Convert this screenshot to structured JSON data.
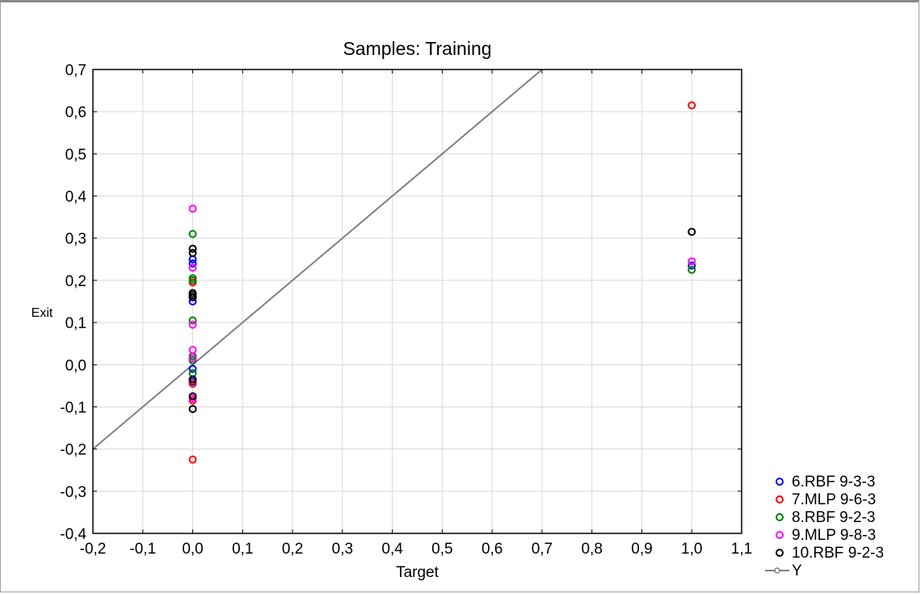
{
  "chart_data": {
    "type": "scatter",
    "title": "Samples: Training",
    "xlabel": "Target",
    "ylabel": "Exit",
    "xlim": [
      -0.2,
      1.1
    ],
    "ylim": [
      -0.4,
      0.7
    ],
    "x_ticks": [
      "-0,2",
      "-0,1",
      "0,0",
      "0,1",
      "0,2",
      "0,3",
      "0,4",
      "0,5",
      "0,6",
      "0,7",
      "0,8",
      "0,9",
      "1,0",
      "1,1"
    ],
    "y_ticks": [
      "-0,4",
      "-0,3",
      "-0,2",
      "-0,1",
      "0,0",
      "0,1",
      "0,2",
      "0,3",
      "0,4",
      "0,5",
      "0,6",
      "0,7"
    ],
    "grid": true,
    "legend_position": "bottom-right",
    "series": [
      {
        "name": "6.RBF 9-3-3",
        "color": "#0000ff",
        "marker": "circle",
        "x": [
          0,
          0,
          0,
          0,
          0,
          0,
          1
        ],
        "y": [
          0.25,
          0.24,
          0.16,
          0.15,
          -0.01,
          -0.04,
          0.235
        ]
      },
      {
        "name": "7.MLP 9-6-3",
        "color": "#ff0000",
        "marker": "circle",
        "x": [
          0,
          0,
          0,
          0,
          0,
          1
        ],
        "y": [
          0.195,
          -0.035,
          -0.045,
          -0.085,
          -0.225,
          0.615
        ]
      },
      {
        "name": "8.RBF 9-2-3",
        "color": "#008000",
        "marker": "circle",
        "x": [
          0,
          0,
          0,
          0,
          0,
          0,
          0,
          1
        ],
        "y": [
          0.31,
          0.205,
          0.2,
          0.105,
          0.02,
          0.01,
          -0.02,
          0.225
        ]
      },
      {
        "name": "9.MLP 9-8-3",
        "color": "#ff00ff",
        "marker": "circle",
        "x": [
          0,
          0,
          0,
          0,
          0,
          0,
          1
        ],
        "y": [
          0.37,
          0.23,
          0.095,
          0.035,
          0.015,
          -0.08,
          0.245
        ]
      },
      {
        "name": "10.RBF 9-2-3",
        "color": "#000000",
        "marker": "circle",
        "x": [
          0,
          0,
          0,
          0,
          0,
          0,
          0,
          0,
          1
        ],
        "y": [
          0.275,
          0.265,
          0.17,
          0.165,
          0.16,
          -0.035,
          -0.075,
          -0.105,
          0.315
        ]
      }
    ],
    "reference_line": {
      "name": "Y",
      "color": "#808080",
      "x": [
        -0.2,
        0.7
      ],
      "y": [
        -0.2,
        0.7
      ]
    }
  }
}
